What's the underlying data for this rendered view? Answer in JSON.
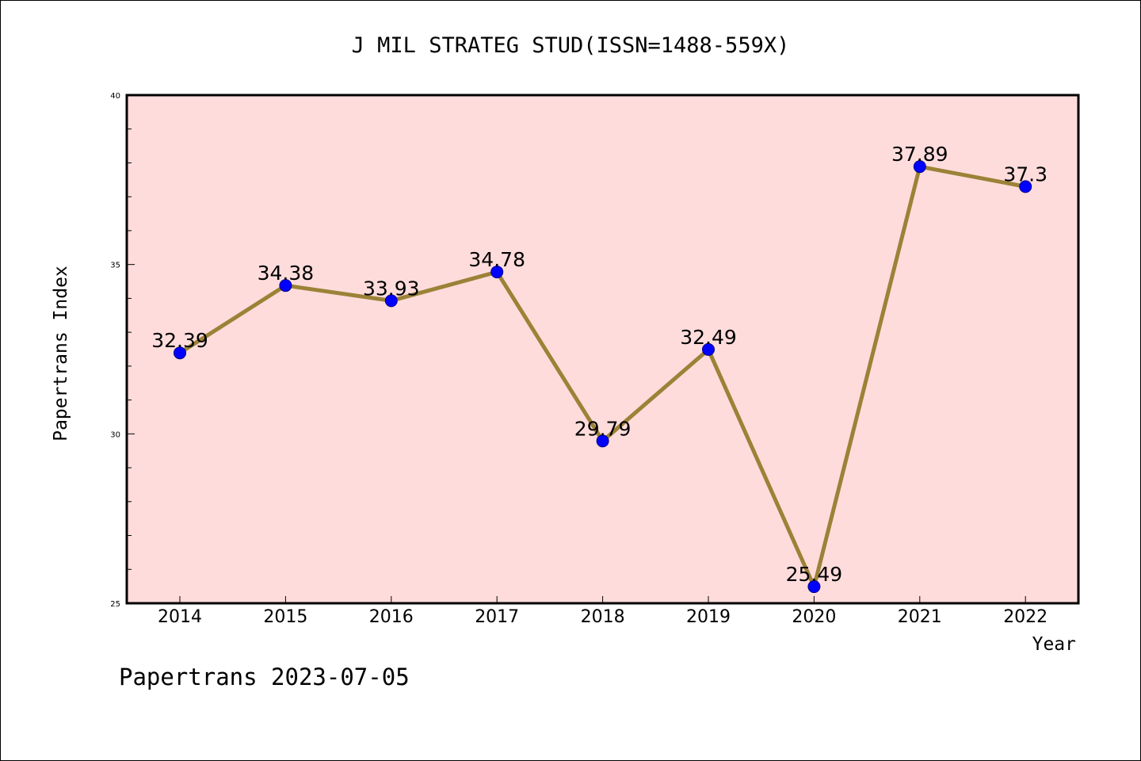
{
  "chart_data": {
    "type": "line",
    "title": "J MIL STRATEG STUD(ISSN=1488-559X)",
    "xlabel": "Year",
    "ylabel": "Papertrans Index",
    "categories": [
      "2014",
      "2015",
      "2016",
      "2017",
      "2018",
      "2019",
      "2020",
      "2021",
      "2022"
    ],
    "series": [
      {
        "values": [
          32.39,
          34.38,
          33.93,
          34.78,
          29.79,
          32.49,
          25.49,
          37.89,
          37.3
        ],
        "labels": [
          "32.39",
          "34.38",
          "33.93",
          "34.78",
          "29.79",
          "32.49",
          "25.49",
          "37.89",
          "37.3"
        ],
        "line_color": "#9b8237",
        "marker_color": "#0000ff"
      }
    ],
    "ylim": [
      25,
      40
    ],
    "y_ticks": [
      "25",
      "30",
      "35",
      "40"
    ],
    "plot_background": "#ffdcdc",
    "grid": false,
    "legend": "none"
  },
  "footer": {
    "text": "Papertrans 2023-07-05"
  }
}
